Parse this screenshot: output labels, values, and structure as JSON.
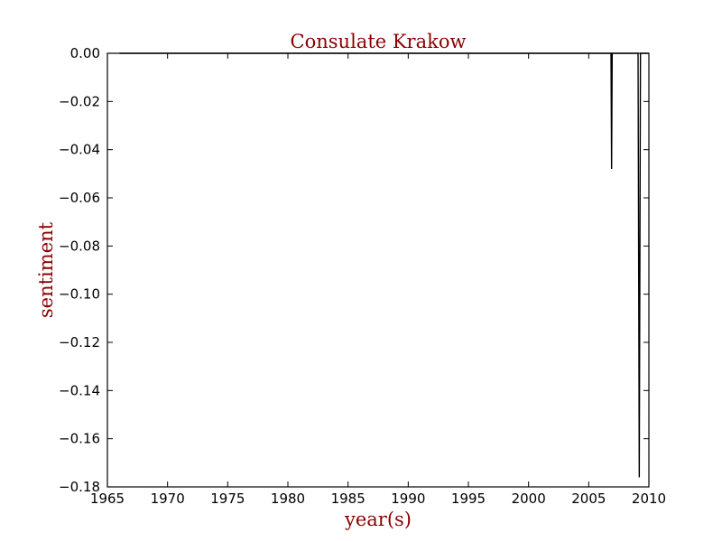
{
  "chart_data": {
    "type": "line",
    "title": "Consulate Krakow",
    "xlabel": "year(s)",
    "ylabel": "sentiment",
    "xlim": [
      1965,
      2010
    ],
    "ylim": [
      -0.18,
      0.0
    ],
    "x_ticks": [
      1965,
      1970,
      1975,
      1980,
      1985,
      1990,
      1995,
      2000,
      2005,
      2010
    ],
    "x_tick_labels": [
      "1965",
      "1970",
      "1975",
      "1980",
      "1985",
      "1990",
      "1995",
      "2000",
      "2005",
      "2010"
    ],
    "y_ticks": [
      0.0,
      -0.02,
      -0.04,
      -0.06,
      -0.08,
      -0.1,
      -0.12,
      -0.14,
      -0.16,
      -0.18
    ],
    "y_tick_labels": [
      "0.00",
      "−0.02",
      "−0.04",
      "−0.06",
      "−0.08",
      "−0.10",
      "−0.12",
      "−0.14",
      "−0.16",
      "−0.18"
    ],
    "grid": false,
    "legend": "none",
    "series": [
      {
        "x": [
          1966.0,
          2006.85,
          2006.9,
          2006.95,
          2009.1,
          2009.2,
          2009.3,
          2010.0
        ],
        "y": [
          0.0,
          0.0,
          -0.048,
          0.0,
          0.0,
          -0.176,
          0.0,
          0.0
        ]
      }
    ],
    "colors": {
      "line": "#000000",
      "title": "#8b0000",
      "axis_label": "#8b0000"
    }
  }
}
